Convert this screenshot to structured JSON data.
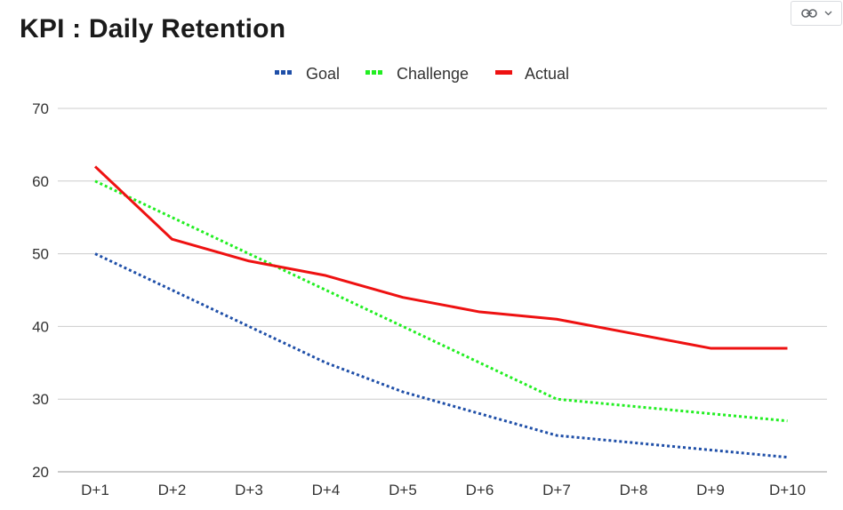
{
  "page": {
    "title": "KPI : Daily Retention"
  },
  "toolbar": {
    "link_icon": "link-icon",
    "dropdown_icon": "chevron-down-icon"
  },
  "chart_data": {
    "type": "line",
    "title": "KPI : Daily Retention",
    "xlabel": "",
    "ylabel": "",
    "categories": [
      "D+1",
      "D+2",
      "D+3",
      "D+4",
      "D+5",
      "D+6",
      "D+7",
      "D+8",
      "D+9",
      "D+10"
    ],
    "ylim": [
      20,
      70
    ],
    "yticks": [
      20,
      30,
      40,
      50,
      60,
      70
    ],
    "grid": true,
    "legend_position": "top-center",
    "series": [
      {
        "name": "Goal",
        "color": "#1f4fa8",
        "style": "dotted",
        "values": [
          50,
          45,
          40,
          35,
          31,
          28,
          25,
          24,
          23,
          22
        ]
      },
      {
        "name": "Challenge",
        "color": "#22ee22",
        "style": "dotted",
        "values": [
          60,
          55,
          50,
          45,
          40,
          35,
          30,
          29,
          28,
          27
        ]
      },
      {
        "name": "Actual",
        "color": "#ee1111",
        "style": "solid",
        "values": [
          62,
          52,
          49,
          47,
          44,
          42,
          41,
          39,
          37,
          37
        ]
      }
    ]
  }
}
